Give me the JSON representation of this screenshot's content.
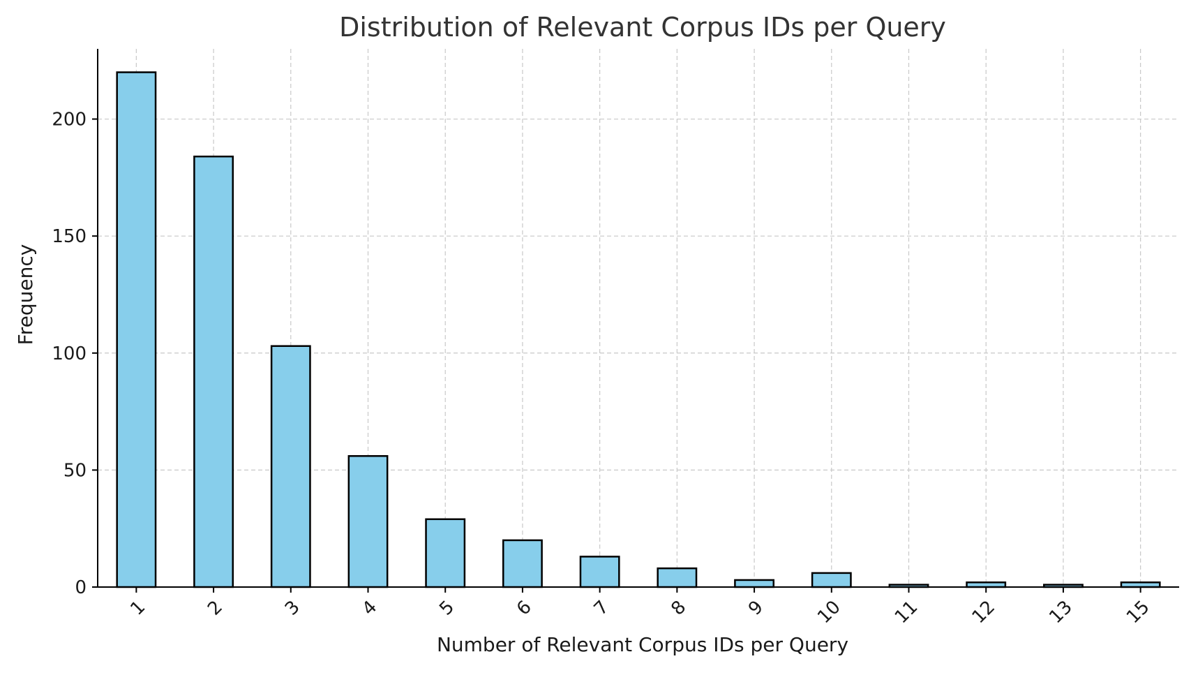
{
  "chart_data": {
    "type": "bar",
    "title": "Distribution of Relevant Corpus IDs per Query",
    "xlabel": "Number of Relevant Corpus IDs per Query",
    "ylabel": "Frequency",
    "categories": [
      "1",
      "2",
      "3",
      "4",
      "5",
      "6",
      "7",
      "8",
      "9",
      "10",
      "11",
      "12",
      "13",
      "15"
    ],
    "values": [
      220,
      184,
      103,
      56,
      29,
      20,
      13,
      8,
      3,
      6,
      1,
      2,
      1,
      2
    ],
    "ylim": [
      0,
      230
    ],
    "yticks": [
      0,
      50,
      100,
      150,
      200
    ],
    "grid": true,
    "bar_color": "#87ceeb",
    "edge_color": "#000000"
  }
}
